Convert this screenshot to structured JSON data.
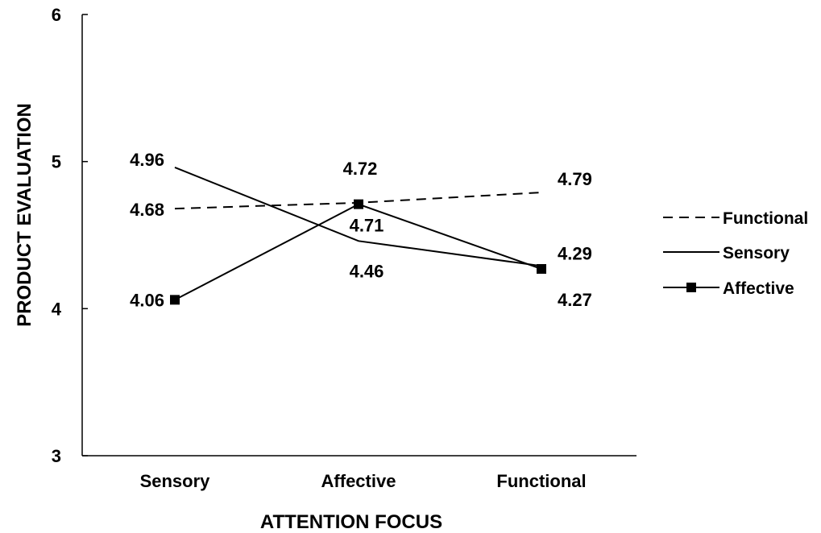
{
  "chart_data": {
    "type": "line",
    "xlabel": "ATTENTION FOCUS",
    "ylabel": "PRODUCT EVALUATION",
    "categories": [
      "Sensory",
      "Affective",
      "Functional"
    ],
    "ylim": [
      3,
      6
    ],
    "yticks": [
      "3",
      "4",
      "5",
      "6"
    ],
    "grid": false,
    "legend_position": "right",
    "series": [
      {
        "name": "Functional",
        "values": [
          4.68,
          4.72,
          4.79
        ],
        "labels": [
          "4.68",
          "4.72",
          "4.79"
        ],
        "style": "dashed",
        "marker": "none",
        "color": "#000000"
      },
      {
        "name": "Sensory",
        "values": [
          4.96,
          4.46,
          4.29
        ],
        "labels": [
          "4.96",
          "4.46",
          "4.29"
        ],
        "style": "solid",
        "marker": "none",
        "color": "#000000"
      },
      {
        "name": "Affective",
        "values": [
          4.06,
          4.71,
          4.27
        ],
        "labels": [
          "4.06",
          "4.71",
          "4.27"
        ],
        "style": "solid",
        "marker": "square",
        "color": "#000000"
      }
    ]
  }
}
